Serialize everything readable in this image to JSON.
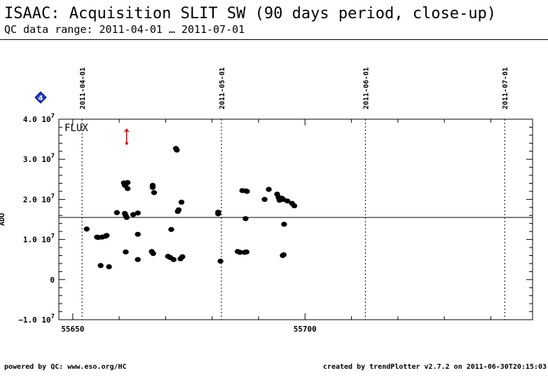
{
  "header": {
    "title": "ISAAC: Acquisition SLIT SW (90 days period, close-up)",
    "subtitle": "QC data range: 2011-04-01 … 2011-07-01"
  },
  "footer": {
    "left": "powered by QC: www.eso.org/HC",
    "right": "created by trendPlotter v2.7.2 on 2011-06-30T20:15:03"
  },
  "colors": {
    "points": "#000000",
    "outlier": "#e00000",
    "marker_fill": "#1f3fd6",
    "marker_edge": "#000080"
  },
  "chart_data": {
    "type": "scatter",
    "title": "ISAAC: Acquisition SLIT SW (90 days period, close-up)",
    "panel_label": "FLUX",
    "ylabel": "ADU",
    "xlim": [
      55647,
      55749
    ],
    "ylim": [
      -10000000,
      40000000
    ],
    "x_ticks": [
      55650,
      55700
    ],
    "x_tick_labels": [
      "55650",
      "55700"
    ],
    "y_ticks": [
      {
        "value": 40000000,
        "mantissa": "4.0",
        "exp": "7",
        "base": "10"
      },
      {
        "value": 30000000,
        "mantissa": "3.0",
        "exp": "7",
        "base": "10"
      },
      {
        "value": 20000000,
        "mantissa": "2.0",
        "exp": "7",
        "base": "10"
      },
      {
        "value": 10000000,
        "mantissa": "1.0",
        "exp": "7",
        "base": "10"
      },
      {
        "value": 0,
        "mantissa": "0",
        "exp": "",
        "base": ""
      },
      {
        "value": -10000000,
        "mantissa": "−1.0",
        "exp": "7",
        "base": "10"
      }
    ],
    "date_markers": [
      {
        "label": "2011-04-01",
        "x": 55652
      },
      {
        "label": "2011-05-01",
        "x": 55682
      },
      {
        "label": "2011-06-01",
        "x": 55713
      },
      {
        "label": "2011-07-01",
        "x": 55743
      }
    ],
    "reference_line": 15500000,
    "marker_label": "4",
    "outliers": [
      {
        "x": 55661.6,
        "y_from": 34000000,
        "y_to": 37500000
      }
    ],
    "series": [
      {
        "points": [
          [
            55653.0,
            12600000
          ],
          [
            55655.2,
            10600000
          ],
          [
            55655.5,
            10500000
          ],
          [
            55656.3,
            10600000
          ],
          [
            55657.0,
            10800000
          ],
          [
            55657.3,
            11000000
          ],
          [
            55656.0,
            3500000
          ],
          [
            55657.8,
            3200000
          ],
          [
            55659.5,
            16700000
          ],
          [
            55661.0,
            24100000
          ],
          [
            55661.2,
            23500000
          ],
          [
            55661.4,
            23800000
          ],
          [
            55661.8,
            24200000
          ],
          [
            55661.8,
            22700000
          ],
          [
            55661.2,
            16500000
          ],
          [
            55661.4,
            16000000
          ],
          [
            55661.6,
            15500000
          ],
          [
            55661.4,
            6900000
          ],
          [
            55663.0,
            16200000
          ],
          [
            55664.0,
            16600000
          ],
          [
            55664.0,
            11300000
          ],
          [
            55664.0,
            5000000
          ],
          [
            55667.2,
            23500000
          ],
          [
            55667.2,
            23000000
          ],
          [
            55667.5,
            21700000
          ],
          [
            55667.0,
            7000000
          ],
          [
            55667.3,
            6500000
          ],
          [
            55670.5,
            5800000
          ],
          [
            55671.0,
            5500000
          ],
          [
            55671.2,
            12500000
          ],
          [
            55671.7,
            5000000
          ],
          [
            55672.2,
            32700000
          ],
          [
            55672.4,
            32300000
          ],
          [
            55672.8,
            17400000
          ],
          [
            55672.6,
            17000000
          ],
          [
            55673.2,
            5200000
          ],
          [
            55673.4,
            19300000
          ],
          [
            55673.6,
            5700000
          ],
          [
            55681.3,
            16800000
          ],
          [
            55681.3,
            16400000
          ],
          [
            55681.8,
            4600000
          ],
          [
            55685.5,
            7000000
          ],
          [
            55686.0,
            6800000
          ],
          [
            55686.5,
            22200000
          ],
          [
            55687.0,
            6800000
          ],
          [
            55687.3,
            22100000
          ],
          [
            55687.2,
            15200000
          ],
          [
            55687.4,
            6900000
          ],
          [
            55687.5,
            22000000
          ],
          [
            55691.3,
            20000000
          ],
          [
            55692.2,
            22500000
          ],
          [
            55694.0,
            21300000
          ],
          [
            55694.3,
            20500000
          ],
          [
            55694.5,
            19800000
          ],
          [
            55695.0,
            20300000
          ],
          [
            55695.3,
            20000000
          ],
          [
            55695.5,
            13800000
          ],
          [
            55695.4,
            6200000
          ],
          [
            55695.2,
            6000000
          ],
          [
            55696.2,
            19600000
          ],
          [
            55697.2,
            19000000
          ],
          [
            55697.7,
            18400000
          ]
        ]
      }
    ]
  }
}
